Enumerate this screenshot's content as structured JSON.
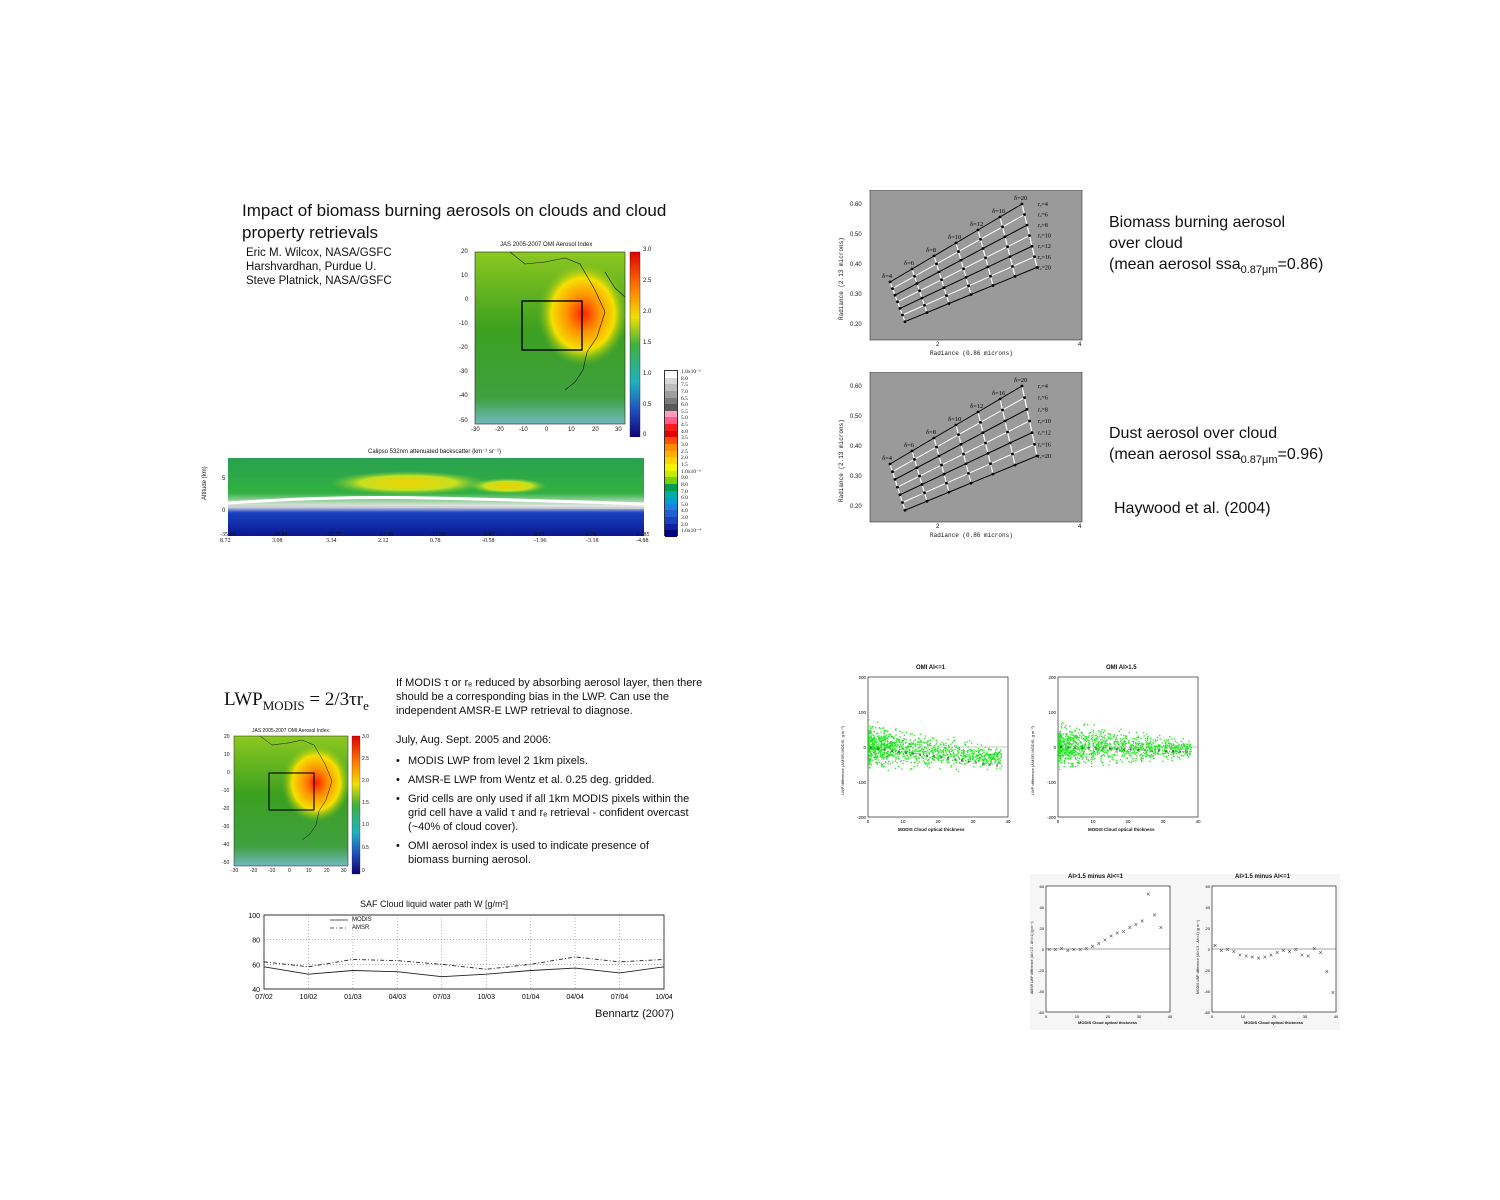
{
  "slide1": {
    "title": "Impact of biomass burning aerosols on clouds and cloud property retrievals",
    "authors": [
      "Eric M. Wilcox, NASA/GSFC",
      "Harshvardhan, Purdue U.",
      "Steve Platnick, NASA/GSFC"
    ],
    "omi_map": {
      "title": "JAS 2005-2007 OMI Aerosol Index",
      "y_ticks": [
        "20",
        "10",
        "0",
        "-10",
        "-20",
        "-30",
        "-40",
        "-50"
      ],
      "x_ticks": [
        "-30",
        "-20",
        "-10",
        "0",
        "10",
        "20",
        "30"
      ],
      "colorbar_ticks": [
        "3.0",
        "2.5",
        "2.0",
        "1.5",
        "1.0",
        "0.5",
        "0"
      ]
    },
    "calipso": {
      "title": "Calipso 532nm attenuated backscatter (km⁻¹ sr⁻¹)",
      "ylabel": "Altitude (km)",
      "y_ticks": [
        "5",
        "0"
      ],
      "x_ticks": [
        [
          "-35.80",
          "8.72"
        ],
        [
          "-29.84",
          "3.08"
        ],
        [
          "-23.77",
          "3.34"
        ],
        [
          "-17.69",
          "2.12"
        ],
        [
          "-11.58",
          "0.78"
        ],
        [
          "-5.47",
          "-0.58"
        ],
        [
          "0.65",
          "-1.96"
        ],
        [
          "6.76",
          "-3.18"
        ],
        [
          "12.85",
          "-4.88"
        ]
      ],
      "colorbar_labels": [
        "1.0x10⁻²",
        "8.0",
        "7.5",
        "7.0",
        "6.5",
        "6.0",
        "5.5",
        "5.0",
        "4.5",
        "4.0",
        "3.5",
        "3.0",
        "2.5",
        "2.0",
        "1.5",
        "1.0x10⁻³",
        "9.0",
        "8.0",
        "7.0",
        "6.0",
        "5.0",
        "4.0",
        "3.0",
        "2.0",
        "1.0x10⁻⁴"
      ],
      "colorbar_colors": [
        "#ffffff",
        "#d8d8d8",
        "#bdbdbd",
        "#9e9e9e",
        "#7c7c7c",
        "#5a5a5a",
        "#ff9bc4",
        "#ff5c8a",
        "#ff1a1a",
        "#e00000",
        "#ff5000",
        "#ff8c00",
        "#ffb000",
        "#ffd700",
        "#f5f500",
        "#c8e800",
        "#7cd000",
        "#00a050",
        "#00b0a0",
        "#00a0d0",
        "#2080e0",
        "#2060d0",
        "#1a40c0",
        "#1020a0",
        "#000080"
      ]
    }
  },
  "slide2": {
    "plot_top": {
      "ylabel": "Radiance (2.13 microns)",
      "xlabel": "Radiance (0.86 microns)",
      "y_ticks": [
        "0.60",
        "0.50",
        "0.40",
        "0.30",
        "0.20"
      ],
      "x_ticks": [
        "2",
        "4"
      ],
      "delta_labels": [
        "δ=4",
        "δ=6",
        "δ=8",
        "δ=10",
        "δ=12",
        "δ=16",
        "δ=20"
      ],
      "re_labels": [
        "rₑ=4",
        "rₑ=6",
        "rₑ=8",
        "rₑ=10",
        "rₑ=12",
        "rₑ=16",
        "rₑ=20"
      ]
    },
    "plot_bottom": {
      "ylabel": "Radiance (2.13 microns)",
      "xlabel": "Radiance (0.86 microns)",
      "y_ticks": [
        "0.60",
        "0.50",
        "0.40",
        "0.30",
        "0.20"
      ],
      "x_ticks": [
        "2",
        "4"
      ],
      "delta_labels": [
        "δ=4",
        "δ=6",
        "δ=8",
        "δ=10",
        "δ=12",
        "δ=16",
        "δ=20"
      ],
      "re_labels": [
        "rₑ=4",
        "rₑ=6",
        "rₑ=8",
        "rₑ=10",
        "rₑ=12",
        "rₑ=16",
        "rₑ=20"
      ]
    },
    "caption_top": {
      "line1": "Biomass burning aerosol",
      "line2": "over cloud",
      "line3_pre": "(mean aerosol ssa",
      "line3_sub": "0.87μm",
      "line3_post": "=0.86)"
    },
    "caption_bottom": {
      "line1": "Dust aerosol over cloud",
      "line2_pre": "(mean aerosol ssa",
      "line2_sub": "0.87μm",
      "line2_post": "=0.96)"
    },
    "citation": "Haywood et al. (2004)"
  },
  "slide3": {
    "formula_main": "LWP",
    "formula_sub": "MODIS",
    "formula_rhs": "= 2/3τr",
    "formula_rhs_sub": "e",
    "intro": "If MODIS τ or rₑ reduced by absorbing aerosol layer, then there should be a corresponding bias in the LWP.  Can use the independent AMSR-E LWP retrieval to diagnose.",
    "period": "July, Aug. Sept. 2005 and 2006:",
    "bullets": [
      "MODIS LWP from level 2 1km pixels.",
      "AMSR-E LWP from Wentz et al. 0.25 deg. gridded.",
      "Grid cells are only used if all 1km MODIS pixels within the grid cell have a valid τ and rₑ retrieval - confident overcast (~40% of cloud cover).",
      "OMI aerosol index is used to indicate presence of biomass burning aerosol."
    ],
    "omi_map_small": {
      "title": "JAS 2005-2007 OMI Aerosol Index",
      "y_ticks": [
        "20",
        "10",
        "0",
        "-10",
        "-20",
        "-30",
        "-40",
        "-50"
      ],
      "x_ticks": [
        "-30",
        "-20",
        "-10",
        "0",
        "10",
        "20",
        "30"
      ],
      "colorbar_ticks": [
        "3.0",
        "2.5",
        "2.0",
        "1.5",
        "1.0",
        "0.5",
        "0"
      ]
    },
    "saf_chart": {
      "title": "SAF Cloud liquid water path W [g/m²]",
      "legend": [
        "MODIS",
        "AMSR"
      ],
      "y_ticks": [
        "100",
        "80",
        "60",
        "40"
      ],
      "x_ticks": [
        "07/02",
        "10/02",
        "01/03",
        "04/03",
        "07/03",
        "10/03",
        "01/04",
        "04/04",
        "07/04",
        "10/04"
      ]
    },
    "citation": "Bennartz (2007)"
  },
  "slide4": {
    "scatter_left": {
      "title": "OMI AI<=1",
      "ylabel": "LWP difference (AMSR-MODIS, g m⁻²)",
      "xlabel": "MODIS Cloud optical thickness",
      "y_ticks": [
        "200",
        "100",
        "0",
        "-100",
        "-200"
      ],
      "x_ticks": [
        "0",
        "10",
        "20",
        "30",
        "40"
      ]
    },
    "scatter_right": {
      "title": "OMI AI>1.5",
      "ylabel": "LWP difference (AMSR-MODIS, g m⁻²)",
      "xlabel": "MODIS Cloud optical thickness",
      "y_ticks": [
        "200",
        "100",
        "0",
        "-100",
        "-200"
      ],
      "x_ticks": [
        "0",
        "10",
        "20",
        "30",
        "40"
      ]
    },
    "diff_left": {
      "title": "AI>1.5 minus AI<=1",
      "ylabel": "AMSR LWP difference (AI>1.5 - AI<=1) (g m⁻²)",
      "xlabel": "MODIS Cloud optical thickness",
      "y_ticks": [
        "60",
        "40",
        "20",
        "0",
        "-20",
        "-40",
        "-60"
      ],
      "x_ticks": [
        "0",
        "10",
        "20",
        "30",
        "40"
      ]
    },
    "diff_right": {
      "title": "AI>1.5 minus AI<=1",
      "ylabel": "MODIS LWP difference (AI>1.5 - AI<=1) (g m⁻²)",
      "xlabel": "MODIS Cloud optical thickness",
      "y_ticks": [
        "60",
        "40",
        "20",
        "0",
        "-20",
        "-40",
        "-60"
      ],
      "x_ticks": [
        "0",
        "10",
        "20",
        "30",
        "40"
      ]
    }
  },
  "chart_data": [
    {
      "type": "line",
      "title": "SAF Cloud liquid water path W [g/m²]",
      "xlabel": "",
      "ylabel": "",
      "ylim": [
        40,
        100
      ],
      "categories": [
        "07/02",
        "10/02",
        "01/03",
        "04/03",
        "07/03",
        "10/03",
        "01/04",
        "04/04",
        "07/04",
        "10/04"
      ],
      "series": [
        {
          "name": "MODIS",
          "values": [
            58,
            52,
            55,
            54,
            50,
            52,
            55,
            57,
            53,
            58
          ]
        },
        {
          "name": "AMSR",
          "values": [
            62,
            58,
            64,
            63,
            60,
            56,
            60,
            66,
            62,
            64
          ]
        }
      ]
    },
    {
      "type": "scatter",
      "title": "AI>1.5 minus AI<=1",
      "xlabel": "MODIS Cloud optical thickness",
      "ylabel": "AMSR LWP difference (AI>1.5 - AI<=1) (g m⁻²)",
      "ylim": [
        -60,
        60
      ],
      "xlim": [
        0,
        40
      ],
      "series": [
        {
          "name": "",
          "x": [
            1,
            3,
            5,
            7,
            9,
            11,
            13,
            15,
            17,
            19,
            21,
            23,
            25,
            27,
            29,
            31,
            33,
            35,
            37
          ],
          "y": [
            -1,
            -1,
            0,
            -2,
            -1,
            -1,
            0,
            2,
            5,
            8,
            12,
            15,
            16,
            20,
            23,
            26,
            52,
            32,
            20
          ]
        }
      ]
    },
    {
      "type": "scatter",
      "title": "AI>1.5 minus AI<=1",
      "xlabel": "MODIS Cloud optical thickness",
      "ylabel": "MODIS LWP difference (AI>1.5 - AI<=1) (g m⁻²)",
      "ylim": [
        -60,
        60
      ],
      "xlim": [
        0,
        40
      ],
      "series": [
        {
          "name": "",
          "x": [
            1,
            3,
            5,
            7,
            9,
            11,
            13,
            15,
            17,
            19,
            21,
            23,
            25,
            27,
            29,
            31,
            33,
            35,
            37,
            39
          ],
          "y": [
            3,
            -2,
            -1,
            -3,
            -6,
            -7,
            -8,
            -9,
            -8,
            -6,
            -4,
            -2,
            -3,
            -1,
            -6,
            -7,
            0,
            -4,
            -22,
            -42
          ]
        }
      ]
    }
  ]
}
